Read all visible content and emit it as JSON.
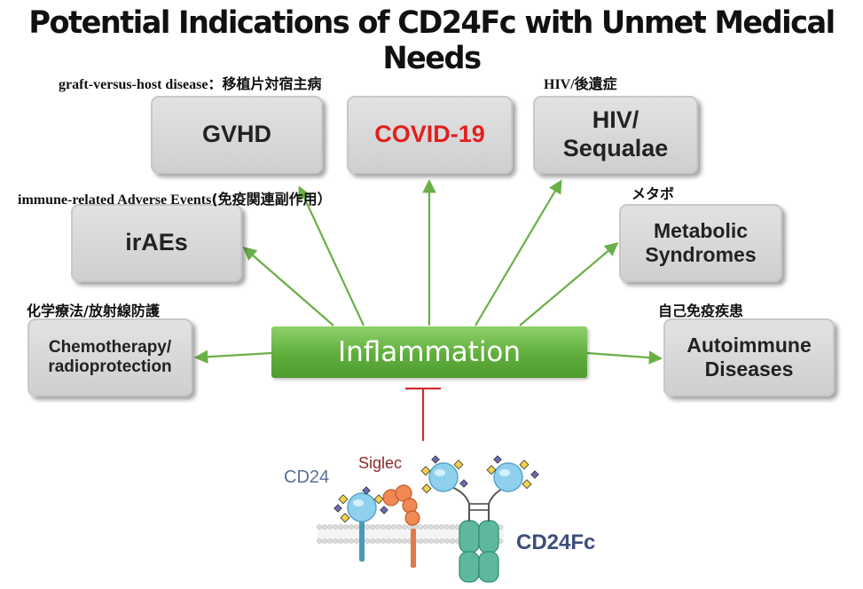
{
  "title": "Potential Indications of CD24Fc with Unmet Medical Needs",
  "center": "Inflammation",
  "boxes": {
    "gvhd": "GVHD",
    "covid": "COVID-19",
    "hiv": "HIV/\nSequalae",
    "iraes": "irAEs",
    "metabolic": "Metabolic\nSyndromes",
    "chemo": "Chemotherapy/\nradioprotection",
    "autoimmune": "Autoimmune\nDiseases"
  },
  "notes": {
    "gvhd_en": "graft-versus-host disease：",
    "gvhd_jp": "移植片対宿主病",
    "hiv": "HIV/後遺症",
    "irae_en": "immune-related Adverse Events",
    "irae_jp": "(免疫関連副作用）",
    "metabolic": "メタボ",
    "chemo": "化学療法/放射線防護",
    "autoimmune": "自己免疫疾患"
  },
  "molecule": {
    "cd24": "CD24",
    "siglec": "Siglec",
    "cd24fc": "CD24Fc"
  },
  "colors": {
    "arrow": "#6aaf48",
    "inhibit": "#d22b2b",
    "covid_text": "#e41e1e",
    "box": "#d9d9d9",
    "cd24_label": "#5b6e9a",
    "siglec_label": "#8b2a2a",
    "cd24fc_label": "#3e4e7a"
  }
}
